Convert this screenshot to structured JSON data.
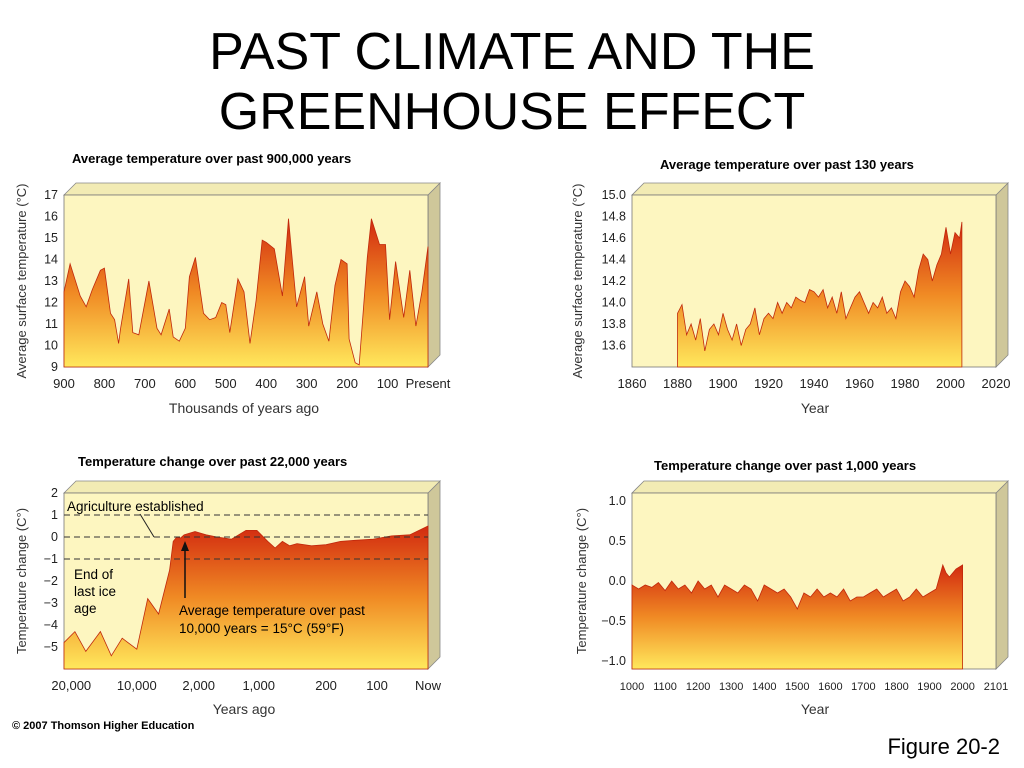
{
  "title_line1": "PAST CLIMATE AND THE",
  "title_line2": "GREENHOUSE EFFECT",
  "copyright": "© 2007 Thomson Higher Education",
  "figure_label": "Figure 20-2",
  "colors": {
    "panel_bg": "#fdf6c0",
    "fill_top": "#d42a10",
    "fill_mid": "#f07a20",
    "fill_bottom": "#ffe35a",
    "panel_side": "#cfc79a"
  },
  "chart_data": [
    {
      "id": "t900k",
      "type": "area",
      "title": "Average temperature over past 900,000 years",
      "xlabel": "Thousands of years ago",
      "ylabel": "Average surface temperature (°C)",
      "xlim": [
        900,
        0
      ],
      "ylim": [
        9,
        17
      ],
      "xticks": [
        900,
        800,
        700,
        600,
        500,
        400,
        300,
        200,
        100,
        0
      ],
      "xtick_labels": [
        "900",
        "800",
        "700",
        "600",
        "500",
        "400",
        "300",
        "200",
        "100",
        "Present"
      ],
      "yticks": [
        9,
        10,
        11,
        12,
        13,
        14,
        15,
        16,
        17
      ],
      "ytick_labels": [
        "9",
        "10",
        "11",
        "12",
        "13",
        "14",
        "15",
        "16",
        "17"
      ],
      "series": [
        {
          "x": [
            900,
            885,
            860,
            845,
            830,
            810,
            800,
            785,
            775,
            765,
            760,
            740,
            730,
            715,
            700,
            690,
            670,
            660,
            640,
            630,
            615,
            600,
            590,
            575,
            555,
            540,
            525,
            510,
            500,
            490,
            470,
            455,
            440,
            425,
            410,
            400,
            380,
            360,
            345,
            325,
            305,
            295,
            275,
            260,
            245,
            230,
            215,
            200,
            195,
            180,
            170,
            150,
            140,
            120,
            105,
            95,
            80,
            60,
            45,
            30,
            15,
            0
          ],
          "y": [
            12.5,
            13.8,
            12.3,
            11.8,
            12.6,
            13.5,
            13.6,
            11.5,
            11.2,
            10.1,
            10.8,
            13.1,
            10.6,
            10.5,
            12.0,
            13.0,
            10.8,
            10.5,
            11.7,
            10.4,
            10.2,
            10.8,
            13.2,
            14.1,
            11.5,
            11.2,
            11.3,
            12.0,
            11.9,
            10.6,
            13.1,
            12.5,
            10.1,
            12.1,
            14.9,
            14.8,
            14.5,
            12.3,
            15.9,
            11.8,
            13.2,
            10.9,
            12.5,
            11.0,
            10.2,
            12.8,
            14.0,
            13.8,
            10.3,
            9.2,
            9.1,
            14.1,
            15.9,
            14.7,
            14.7,
            11.2,
            13.9,
            11.3,
            13.5,
            10.9,
            12.5,
            14.6
          ]
        }
      ]
    },
    {
      "id": "t130",
      "type": "area",
      "title": "Average temperature over past 130 years",
      "xlabel": "Year",
      "ylabel": "Average surface temperature (°C)",
      "xlim": [
        1860,
        2020
      ],
      "ylim": [
        13.4,
        15.0
      ],
      "xticks": [
        1860,
        1880,
        1900,
        1920,
        1940,
        1960,
        1980,
        2000,
        2020
      ],
      "xtick_labels": [
        "1860",
        "1880",
        "1900",
        "1920",
        "1940",
        "1960",
        "1980",
        "2000",
        "2020"
      ],
      "yticks": [
        13.6,
        13.8,
        14.0,
        14.2,
        14.4,
        14.6,
        14.8,
        15.0
      ],
      "ytick_labels": [
        "13.6",
        "13.8",
        "14.0",
        "14.2",
        "14.4",
        "14.6",
        "14.8",
        "15.0"
      ],
      "series": [
        {
          "x": [
            1880,
            1882,
            1884,
            1886,
            1888,
            1890,
            1892,
            1894,
            1896,
            1898,
            1900,
            1902,
            1904,
            1906,
            1908,
            1910,
            1912,
            1914,
            1916,
            1918,
            1920,
            1922,
            1924,
            1926,
            1928,
            1930,
            1932,
            1934,
            1936,
            1938,
            1940,
            1942,
            1944,
            1946,
            1948,
            1950,
            1952,
            1954,
            1956,
            1958,
            1960,
            1962,
            1964,
            1966,
            1968,
            1970,
            1972,
            1974,
            1976,
            1978,
            1980,
            1982,
            1984,
            1986,
            1988,
            1990,
            1992,
            1994,
            1996,
            1998,
            2000,
            2002,
            2004,
            2005
          ],
          "y": [
            13.9,
            13.98,
            13.7,
            13.8,
            13.65,
            13.85,
            13.55,
            13.75,
            13.8,
            13.7,
            13.9,
            13.75,
            13.65,
            13.8,
            13.6,
            13.75,
            13.8,
            13.95,
            13.7,
            13.85,
            13.9,
            13.85,
            14.0,
            13.9,
            14.0,
            13.95,
            14.05,
            14.02,
            14.0,
            14.12,
            14.1,
            14.05,
            14.12,
            13.95,
            14.05,
            13.9,
            14.1,
            13.85,
            13.95,
            14.05,
            14.1,
            14.0,
            13.9,
            14.0,
            13.95,
            14.05,
            13.9,
            13.95,
            13.85,
            14.1,
            14.2,
            14.15,
            14.05,
            14.3,
            14.45,
            14.4,
            14.2,
            14.35,
            14.45,
            14.7,
            14.45,
            14.65,
            14.6,
            14.75
          ]
        }
      ]
    },
    {
      "id": "t22k",
      "type": "area",
      "title": "Temperature change over past 22,000 years",
      "xlabel": "Years ago",
      "ylabel": "Temperature change (C°)",
      "ylim": [
        -6,
        2
      ],
      "xtick_labels": [
        "20,000",
        "10,000",
        "2,000",
        "1,000",
        "200",
        "100",
        "Now"
      ],
      "yticks": [
        -5,
        -4,
        -3,
        -2,
        -1,
        0,
        1,
        2
      ],
      "ytick_labels": [
        "−5",
        "−4",
        "−3",
        "−2",
        "−1",
        "0",
        "1",
        "2"
      ],
      "reference_lines": [
        1,
        0,
        -1
      ],
      "annotations": {
        "agriculture": "Agriculture established",
        "ice_age_1": "End of",
        "ice_age_2": "last ice",
        "ice_age_3": "age",
        "avg_1": "Average temperature over past",
        "avg_2": "10,000 years = 15°C (59°F)"
      },
      "series": [
        {
          "t": [
            0,
            0.03,
            0.06,
            0.1,
            0.13,
            0.16,
            0.2,
            0.23,
            0.26,
            0.29,
            0.3,
            0.31,
            0.32,
            0.33,
            0.36,
            0.39,
            0.42,
            0.46,
            0.5,
            0.53,
            0.56,
            0.58,
            0.6,
            0.62,
            0.64,
            0.68,
            0.72,
            0.76,
            0.8,
            0.85,
            0.9,
            0.95,
            1.0
          ],
          "y": [
            -4.8,
            -4.3,
            -5.2,
            -4.3,
            -5.4,
            -4.6,
            -5.1,
            -2.8,
            -3.5,
            -1.5,
            -0.2,
            0.0,
            -0.05,
            0.1,
            0.25,
            0.1,
            0.0,
            -0.1,
            0.3,
            0.3,
            -0.2,
            -0.5,
            -0.2,
            -0.4,
            -0.3,
            -0.4,
            -0.35,
            -0.2,
            -0.15,
            -0.1,
            0.05,
            0.1,
            0.5
          ]
        }
      ]
    },
    {
      "id": "t1000",
      "type": "area",
      "title": "Temperature change over past 1,000 years",
      "xlabel": "Year",
      "ylabel": "Temperature change (C°)",
      "xlim": [
        1000,
        2101
      ],
      "ylim": [
        -1.1,
        1.1
      ],
      "xticks": [
        1000,
        1100,
        1200,
        1300,
        1400,
        1500,
        1600,
        1700,
        1800,
        1900,
        2000,
        2101
      ],
      "xtick_labels": [
        "1000",
        "1100",
        "1200",
        "1300",
        "1400",
        "1500",
        "1600",
        "1700",
        "1800",
        "1900",
        "2000",
        "2101"
      ],
      "yticks": [
        1.0,
        0.5,
        0.0,
        -0.5,
        -1.0
      ],
      "ytick_labels": [
        "1.0",
        "0.5",
        "0.0",
        "−0.5",
        "−1.0"
      ],
      "series": [
        {
          "x": [
            1000,
            1020,
            1040,
            1060,
            1080,
            1100,
            1120,
            1140,
            1160,
            1180,
            1200,
            1220,
            1240,
            1260,
            1280,
            1300,
            1320,
            1340,
            1360,
            1380,
            1400,
            1420,
            1440,
            1460,
            1480,
            1500,
            1520,
            1540,
            1560,
            1580,
            1600,
            1620,
            1640,
            1660,
            1680,
            1700,
            1720,
            1740,
            1760,
            1780,
            1800,
            1820,
            1840,
            1860,
            1880,
            1900,
            1920,
            1940,
            1950,
            1960,
            1980,
            2000
          ],
          "y": [
            -0.05,
            -0.1,
            -0.05,
            -0.08,
            -0.02,
            -0.12,
            0.0,
            -0.1,
            -0.05,
            -0.15,
            0.0,
            -0.1,
            -0.05,
            -0.2,
            -0.05,
            -0.1,
            -0.15,
            -0.05,
            -0.1,
            -0.25,
            -0.05,
            -0.1,
            -0.15,
            -0.1,
            -0.2,
            -0.35,
            -0.15,
            -0.2,
            -0.1,
            -0.2,
            -0.15,
            -0.2,
            -0.1,
            -0.25,
            -0.2,
            -0.2,
            -0.15,
            -0.1,
            -0.2,
            -0.15,
            -0.1,
            -0.25,
            -0.2,
            -0.1,
            -0.2,
            -0.15,
            -0.1,
            0.2,
            0.1,
            0.05,
            0.15,
            0.2
          ]
        }
      ]
    }
  ]
}
